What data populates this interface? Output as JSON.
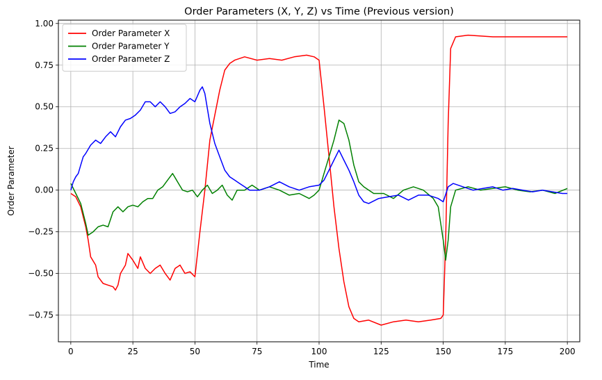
{
  "chart_data": {
    "type": "line",
    "title": "Order Parameters (X, Y, Z) vs Time (Previous version)",
    "xlabel": "Time",
    "ylabel": "Order Parameter",
    "xlim": [
      -5,
      205
    ],
    "ylim": [
      -0.91,
      1.02
    ],
    "xticks": [
      0,
      25,
      50,
      75,
      100,
      125,
      150,
      175,
      200
    ],
    "xtick_labels": [
      "0",
      "25",
      "50",
      "75",
      "100",
      "125",
      "150",
      "175",
      "200"
    ],
    "yticks": [
      -0.75,
      -0.5,
      -0.25,
      0.0,
      0.25,
      0.5,
      0.75,
      1.0
    ],
    "ytick_labels": [
      "−0.75",
      "−0.50",
      "−0.25",
      "0.00",
      "0.25",
      "0.50",
      "0.75",
      "1.00"
    ],
    "grid": true,
    "legend_position": "top-left",
    "series": [
      {
        "name": "Order Parameter X",
        "color": "#ff0000",
        "points": [
          [
            0,
            -0.02
          ],
          [
            2,
            -0.04
          ],
          [
            4,
            -0.1
          ],
          [
            6,
            -0.22
          ],
          [
            7,
            -0.3
          ],
          [
            8,
            -0.4
          ],
          [
            10,
            -0.45
          ],
          [
            11,
            -0.52
          ],
          [
            13,
            -0.56
          ],
          [
            15,
            -0.57
          ],
          [
            17,
            -0.58
          ],
          [
            18,
            -0.6
          ],
          [
            19,
            -0.57
          ],
          [
            20,
            -0.5
          ],
          [
            22,
            -0.45
          ],
          [
            23,
            -0.38
          ],
          [
            25,
            -0.42
          ],
          [
            27,
            -0.47
          ],
          [
            28,
            -0.4
          ],
          [
            30,
            -0.47
          ],
          [
            32,
            -0.5
          ],
          [
            34,
            -0.47
          ],
          [
            36,
            -0.45
          ],
          [
            38,
            -0.5
          ],
          [
            40,
            -0.54
          ],
          [
            42,
            -0.47
          ],
          [
            44,
            -0.45
          ],
          [
            46,
            -0.5
          ],
          [
            48,
            -0.49
          ],
          [
            50,
            -0.52
          ],
          [
            52,
            -0.25
          ],
          [
            54,
            0.0
          ],
          [
            56,
            0.3
          ],
          [
            58,
            0.45
          ],
          [
            60,
            0.6
          ],
          [
            62,
            0.72
          ],
          [
            64,
            0.76
          ],
          [
            66,
            0.78
          ],
          [
            70,
            0.8
          ],
          [
            75,
            0.78
          ],
          [
            80,
            0.79
          ],
          [
            85,
            0.78
          ],
          [
            90,
            0.8
          ],
          [
            95,
            0.81
          ],
          [
            98,
            0.8
          ],
          [
            100,
            0.78
          ],
          [
            102,
            0.5
          ],
          [
            104,
            0.2
          ],
          [
            106,
            -0.1
          ],
          [
            108,
            -0.35
          ],
          [
            110,
            -0.55
          ],
          [
            112,
            -0.7
          ],
          [
            114,
            -0.77
          ],
          [
            116,
            -0.79
          ],
          [
            120,
            -0.78
          ],
          [
            125,
            -0.81
          ],
          [
            130,
            -0.79
          ],
          [
            135,
            -0.78
          ],
          [
            140,
            -0.79
          ],
          [
            145,
            -0.78
          ],
          [
            149,
            -0.77
          ],
          [
            150,
            -0.75
          ],
          [
            151,
            -0.3
          ],
          [
            152,
            0.4
          ],
          [
            153,
            0.85
          ],
          [
            155,
            0.92
          ],
          [
            160,
            0.93
          ],
          [
            170,
            0.92
          ],
          [
            180,
            0.92
          ],
          [
            190,
            0.92
          ],
          [
            200,
            0.92
          ]
        ]
      },
      {
        "name": "Order Parameter Y",
        "color": "#008000",
        "points": [
          [
            0,
            0.04
          ],
          [
            2,
            -0.02
          ],
          [
            4,
            -0.08
          ],
          [
            6,
            -0.2
          ],
          [
            7,
            -0.27
          ],
          [
            9,
            -0.25
          ],
          [
            11,
            -0.22
          ],
          [
            13,
            -0.21
          ],
          [
            15,
            -0.22
          ],
          [
            17,
            -0.13
          ],
          [
            19,
            -0.1
          ],
          [
            21,
            -0.13
          ],
          [
            23,
            -0.1
          ],
          [
            25,
            -0.09
          ],
          [
            27,
            -0.1
          ],
          [
            29,
            -0.07
          ],
          [
            31,
            -0.05
          ],
          [
            33,
            -0.05
          ],
          [
            35,
            0.0
          ],
          [
            37,
            0.02
          ],
          [
            39,
            0.06
          ],
          [
            41,
            0.1
          ],
          [
            43,
            0.05
          ],
          [
            45,
            0.0
          ],
          [
            47,
            -0.01
          ],
          [
            49,
            0.0
          ],
          [
            51,
            -0.04
          ],
          [
            53,
            0.0
          ],
          [
            55,
            0.03
          ],
          [
            57,
            -0.02
          ],
          [
            59,
            0.0
          ],
          [
            61,
            0.03
          ],
          [
            63,
            -0.03
          ],
          [
            65,
            -0.06
          ],
          [
            67,
            0.0
          ],
          [
            70,
            0.0
          ],
          [
            73,
            0.03
          ],
          [
            76,
            0.0
          ],
          [
            80,
            0.02
          ],
          [
            84,
            0.0
          ],
          [
            88,
            -0.03
          ],
          [
            92,
            -0.02
          ],
          [
            96,
            -0.05
          ],
          [
            98,
            -0.03
          ],
          [
            100,
            0.0
          ],
          [
            102,
            0.1
          ],
          [
            104,
            0.2
          ],
          [
            106,
            0.3
          ],
          [
            108,
            0.42
          ],
          [
            110,
            0.4
          ],
          [
            112,
            0.3
          ],
          [
            114,
            0.15
          ],
          [
            116,
            0.05
          ],
          [
            118,
            0.02
          ],
          [
            122,
            -0.02
          ],
          [
            126,
            -0.02
          ],
          [
            130,
            -0.05
          ],
          [
            134,
            0.0
          ],
          [
            138,
            0.02
          ],
          [
            142,
            0.0
          ],
          [
            146,
            -0.05
          ],
          [
            148,
            -0.1
          ],
          [
            149,
            -0.2
          ],
          [
            150,
            -0.3
          ],
          [
            151,
            -0.42
          ],
          [
            152,
            -0.3
          ],
          [
            153,
            -0.1
          ],
          [
            155,
            0.0
          ],
          [
            160,
            0.02
          ],
          [
            165,
            0.0
          ],
          [
            170,
            0.01
          ],
          [
            175,
            0.02
          ],
          [
            180,
            0.0
          ],
          [
            185,
            -0.01
          ],
          [
            190,
            0.0
          ],
          [
            195,
            -0.02
          ],
          [
            200,
            0.01
          ]
        ]
      },
      {
        "name": "Order Parameter Z",
        "color": "#0000ff",
        "points": [
          [
            0,
            0.0
          ],
          [
            1,
            0.05
          ],
          [
            2,
            0.08
          ],
          [
            3,
            0.1
          ],
          [
            4,
            0.15
          ],
          [
            5,
            0.2
          ],
          [
            6,
            0.22
          ],
          [
            8,
            0.27
          ],
          [
            10,
            0.3
          ],
          [
            12,
            0.28
          ],
          [
            14,
            0.32
          ],
          [
            16,
            0.35
          ],
          [
            18,
            0.32
          ],
          [
            20,
            0.38
          ],
          [
            22,
            0.42
          ],
          [
            24,
            0.43
          ],
          [
            26,
            0.45
          ],
          [
            28,
            0.48
          ],
          [
            30,
            0.53
          ],
          [
            32,
            0.53
          ],
          [
            34,
            0.5
          ],
          [
            36,
            0.53
          ],
          [
            38,
            0.5
          ],
          [
            40,
            0.46
          ],
          [
            42,
            0.47
          ],
          [
            44,
            0.5
          ],
          [
            46,
            0.52
          ],
          [
            48,
            0.55
          ],
          [
            50,
            0.53
          ],
          [
            52,
            0.6
          ],
          [
            53,
            0.62
          ],
          [
            54,
            0.58
          ],
          [
            56,
            0.4
          ],
          [
            58,
            0.28
          ],
          [
            60,
            0.2
          ],
          [
            62,
            0.12
          ],
          [
            64,
            0.08
          ],
          [
            66,
            0.06
          ],
          [
            68,
            0.04
          ],
          [
            70,
            0.02
          ],
          [
            72,
            0.0
          ],
          [
            76,
            0.0
          ],
          [
            80,
            0.02
          ],
          [
            84,
            0.05
          ],
          [
            88,
            0.02
          ],
          [
            92,
            0.0
          ],
          [
            96,
            0.02
          ],
          [
            100,
            0.03
          ],
          [
            102,
            0.06
          ],
          [
            104,
            0.12
          ],
          [
            106,
            0.18
          ],
          [
            108,
            0.24
          ],
          [
            110,
            0.18
          ],
          [
            112,
            0.12
          ],
          [
            114,
            0.05
          ],
          [
            116,
            -0.03
          ],
          [
            118,
            -0.07
          ],
          [
            120,
            -0.08
          ],
          [
            124,
            -0.05
          ],
          [
            128,
            -0.04
          ],
          [
            132,
            -0.03
          ],
          [
            136,
            -0.06
          ],
          [
            140,
            -0.03
          ],
          [
            144,
            -0.03
          ],
          [
            148,
            -0.05
          ],
          [
            150,
            -0.07
          ],
          [
            152,
            0.02
          ],
          [
            154,
            0.04
          ],
          [
            158,
            0.02
          ],
          [
            162,
            0.0
          ],
          [
            166,
            0.01
          ],
          [
            170,
            0.02
          ],
          [
            174,
            0.0
          ],
          [
            178,
            0.01
          ],
          [
            182,
            0.0
          ],
          [
            186,
            -0.01
          ],
          [
            190,
            0.0
          ],
          [
            194,
            -0.01
          ],
          [
            198,
            -0.02
          ],
          [
            200,
            -0.02
          ]
        ]
      }
    ]
  }
}
